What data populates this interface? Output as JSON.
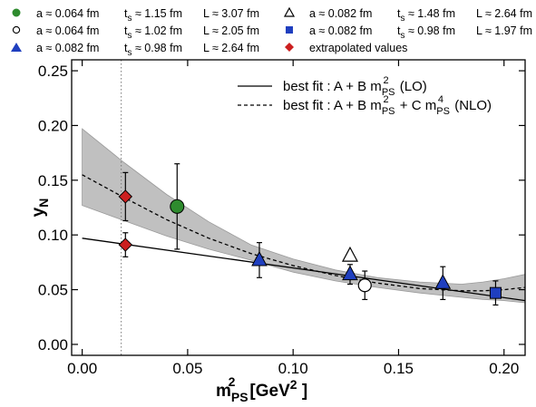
{
  "chart_data": {
    "type": "scatter",
    "xlabel": {
      "base": "m",
      "sub": "PS",
      "sup": "2",
      "unit_open": "[GeV",
      "unit_sup": "2",
      "unit_close": " ]"
    },
    "ylabel": {
      "base": "y",
      "sub": "N"
    },
    "xlim": [
      -0.005,
      0.21
    ],
    "ylim": [
      -0.01,
      0.26
    ],
    "xticks": [
      0.0,
      0.05,
      0.1,
      0.15,
      0.2
    ],
    "xtick_labels": [
      "0.00",
      "0.05",
      "0.10",
      "0.15",
      "0.20"
    ],
    "yticks": [
      0.0,
      0.05,
      0.1,
      0.15,
      0.2,
      0.25
    ],
    "ytick_labels": [
      "0.00",
      "0.05",
      "0.10",
      "0.15",
      "0.20",
      "0.25"
    ],
    "physical_point_x": 0.0185,
    "legend": [
      {
        "marker": "circle-filled",
        "color": "#2e8b2e",
        "a": "a ≈ 0.064 fm",
        "ts_base": "t",
        "ts_sub": "s",
        "ts_val": " ≈ 1.15 fm",
        "L": "L ≈ 3.07 fm"
      },
      {
        "marker": "triangle-open",
        "color": "#000000",
        "a": "a ≈ 0.082 fm",
        "ts_base": "t",
        "ts_sub": "s",
        "ts_val": " ≈ 1.48 fm",
        "L": "L ≈ 2.64 fm"
      },
      {
        "marker": "circle-open",
        "color": "#000000",
        "a": "a ≈ 0.064 fm",
        "ts_base": "t",
        "ts_sub": "s",
        "ts_val": " ≈ 1.02 fm",
        "L": "L ≈ 2.05 fm"
      },
      {
        "marker": "square-filled",
        "color": "#1f3fbf",
        "a": "a ≈ 0.082 fm",
        "ts_base": "t",
        "ts_sub": "s",
        "ts_val": " ≈ 0.98 fm",
        "L": "L ≈ 1.97 fm"
      },
      {
        "marker": "triangle-filled",
        "color": "#1f3fbf",
        "a": "a ≈ 0.082 fm",
        "ts_base": "t",
        "ts_sub": "s",
        "ts_val": " ≈ 0.98 fm",
        "L": "L ≈ 2.64 fm"
      },
      {
        "marker": "diamond-filled",
        "color": "#cc1f1f",
        "text": "extrapolated values"
      }
    ],
    "fit_legend": [
      {
        "style": "solid",
        "prefix": "best fit :  A + B m",
        "t1_sub": "PS",
        "t1_sup": "2",
        "mid": "",
        "t2_base": "",
        "t2_sub": "",
        "t2_sup": "",
        "suffix": " (LO)"
      },
      {
        "style": "dashed",
        "prefix": "best fit :  A + B m",
        "t1_sub": "PS",
        "t1_sup": "2",
        "mid": " + C ",
        "t2_base": "m",
        "t2_sub": "PS",
        "t2_sup": "4",
        "suffix": " (NLO)"
      }
    ],
    "series": [
      {
        "marker": "circle-filled",
        "color": "#2e8b2e",
        "points": [
          {
            "x": 0.045,
            "y": 0.126,
            "yerr": 0.039
          }
        ]
      },
      {
        "marker": "triangle-open",
        "color": "#000000",
        "points": [
          {
            "x": 0.127,
            "y": 0.081,
            "yerr": 0.0
          }
        ]
      },
      {
        "marker": "circle-open",
        "color": "#000000",
        "points": [
          {
            "x": 0.134,
            "y": 0.054,
            "yerr": 0.013
          }
        ]
      },
      {
        "marker": "square-filled",
        "color": "#1f3fbf",
        "points": [
          {
            "x": 0.196,
            "y": 0.047,
            "yerr": 0.011
          }
        ]
      },
      {
        "marker": "triangle-filled",
        "color": "#1f3fbf",
        "points": [
          {
            "x": 0.084,
            "y": 0.077,
            "yerr": 0.016
          },
          {
            "x": 0.127,
            "y": 0.064,
            "yerr": 0.009
          },
          {
            "x": 0.171,
            "y": 0.056,
            "yerr": 0.015
          }
        ]
      },
      {
        "marker": "diamond-filled",
        "color": "#cc1f1f",
        "points": [
          {
            "x": 0.0205,
            "y": 0.135,
            "yerr": 0.022
          },
          {
            "x": 0.0205,
            "y": 0.091,
            "yerr": 0.011
          }
        ]
      }
    ],
    "lo_fit": {
      "x": [
        0.0,
        0.21
      ],
      "y": [
        0.097,
        0.04
      ]
    },
    "nlo_fit": {
      "x": [
        0.0,
        0.02,
        0.04,
        0.06,
        0.08,
        0.1,
        0.12,
        0.14,
        0.16,
        0.18,
        0.19,
        0.2,
        0.21
      ],
      "y": [
        0.155,
        0.134,
        0.114,
        0.097,
        0.083,
        0.072,
        0.063,
        0.056,
        0.051,
        0.049,
        0.049,
        0.05,
        0.052
      ],
      "lower": [
        0.127,
        0.113,
        0.099,
        0.087,
        0.077,
        0.066,
        0.058,
        0.052,
        0.047,
        0.043,
        0.041,
        0.04,
        0.038
      ],
      "upper": [
        0.197,
        0.166,
        0.137,
        0.112,
        0.091,
        0.078,
        0.068,
        0.061,
        0.057,
        0.055,
        0.057,
        0.06,
        0.064
      ]
    }
  }
}
